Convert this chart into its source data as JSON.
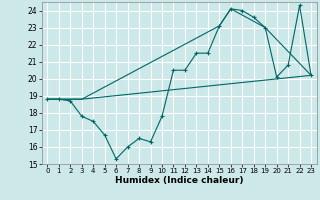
{
  "xlabel": "Humidex (Indice chaleur)",
  "bg_color": "#cce8e8",
  "grid_color": "#ffffff",
  "line_color": "#006666",
  "xlim": [
    -0.5,
    23.5
  ],
  "ylim": [
    15,
    24.5
  ],
  "yticks": [
    15,
    16,
    17,
    18,
    19,
    20,
    21,
    22,
    23,
    24
  ],
  "xticks": [
    0,
    1,
    2,
    3,
    4,
    5,
    6,
    7,
    8,
    9,
    10,
    11,
    12,
    13,
    14,
    15,
    16,
    17,
    18,
    19,
    20,
    21,
    22,
    23
  ],
  "line1_x": [
    0,
    1,
    2,
    3,
    4,
    5,
    6,
    7,
    8,
    9,
    10,
    11,
    12,
    13,
    14,
    15,
    16,
    17,
    18,
    19,
    20,
    21,
    22,
    23
  ],
  "line1_y": [
    18.8,
    18.8,
    18.7,
    17.8,
    17.5,
    16.7,
    15.3,
    16.0,
    16.5,
    16.3,
    17.8,
    20.5,
    20.5,
    21.5,
    21.5,
    23.1,
    24.1,
    24.0,
    23.6,
    23.0,
    20.1,
    20.8,
    24.3,
    20.2
  ],
  "line2_x": [
    0,
    3,
    23
  ],
  "line2_y": [
    18.8,
    18.8,
    20.2
  ],
  "line3_x": [
    0,
    3,
    15,
    16,
    19,
    23
  ],
  "line3_y": [
    18.8,
    18.8,
    23.1,
    24.1,
    23.0,
    20.2
  ]
}
